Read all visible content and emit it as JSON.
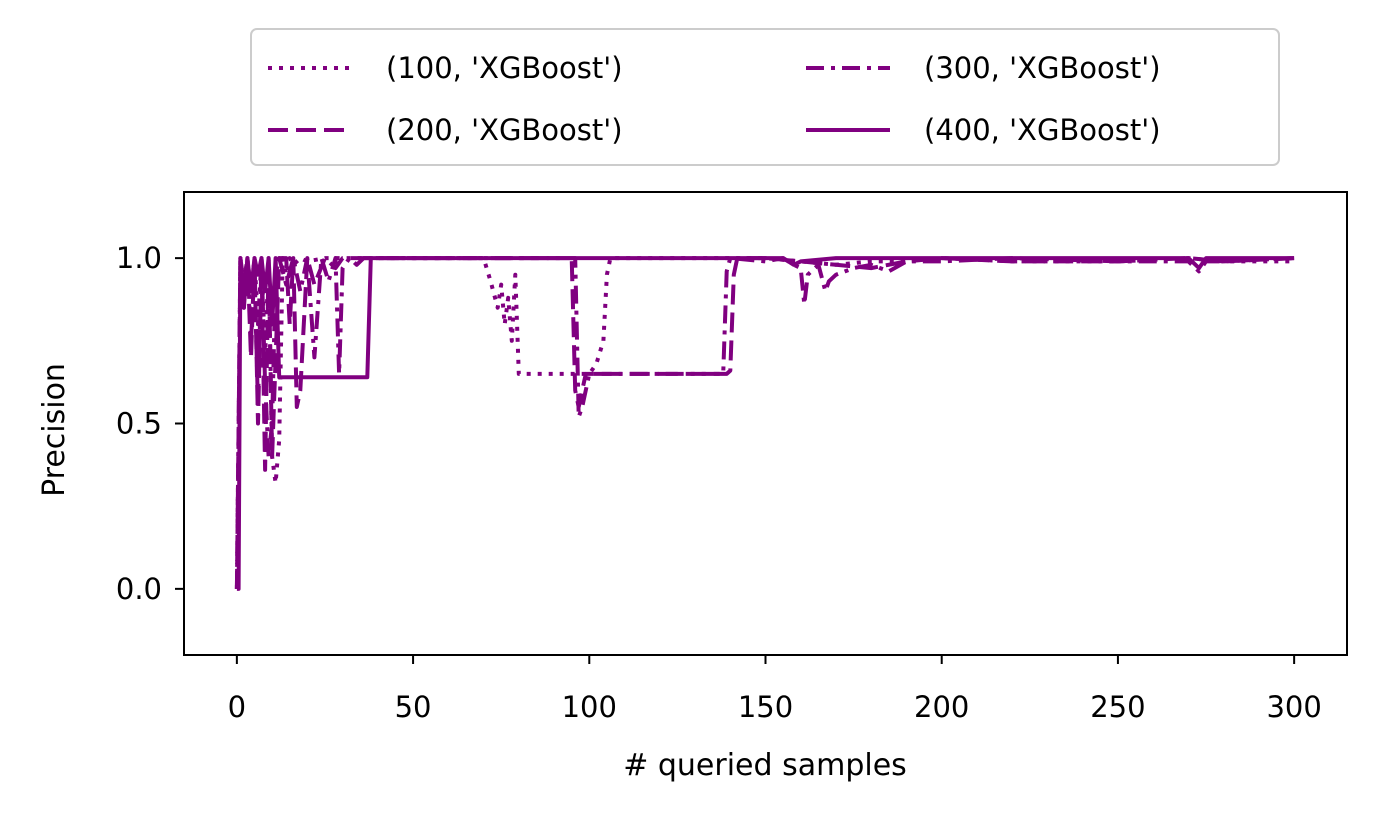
{
  "chart_data": {
    "type": "line",
    "xlabel": "# queried samples",
    "ylabel": "Precision",
    "xlim": [
      -15,
      315
    ],
    "ylim": [
      -0.2,
      1.2
    ],
    "xticks": [
      0,
      50,
      100,
      150,
      200,
      250,
      300
    ],
    "yticks": [
      0.0,
      0.5,
      1.0
    ],
    "xtick_labels": [
      "0",
      "50",
      "100",
      "150",
      "200",
      "250",
      "300"
    ],
    "ytick_labels": [
      "0.0",
      "0.5",
      "1.0"
    ],
    "grid": false,
    "legend_position": "top-center",
    "color": "#800080",
    "series": [
      {
        "name": "(100, 'XGBoost')",
        "style": "dotted",
        "x": [
          0,
          1,
          2,
          3,
          4,
          5,
          6,
          7,
          8,
          9,
          10,
          11,
          12,
          13,
          14,
          15,
          16,
          18,
          20,
          25,
          30,
          35,
          40,
          50,
          60,
          70,
          72,
          74,
          75,
          76,
          77,
          78,
          79,
          80,
          85,
          90,
          95,
          100,
          102,
          104,
          105,
          106,
          110,
          120,
          130,
          140,
          150,
          160,
          170,
          180,
          190,
          200,
          220,
          250,
          270,
          280,
          300
        ],
        "y": [
          0.0,
          1.0,
          0.92,
          1.0,
          0.9,
          1.0,
          0.8,
          1.0,
          0.7,
          1.0,
          0.4,
          0.32,
          0.45,
          1.0,
          0.95,
          1.0,
          0.98,
          1.0,
          0.99,
          1.0,
          1.0,
          1.0,
          1.0,
          1.0,
          1.0,
          1.0,
          0.93,
          0.85,
          0.92,
          0.8,
          0.88,
          0.75,
          0.95,
          0.65,
          0.65,
          0.65,
          0.65,
          0.65,
          0.68,
          0.75,
          0.95,
          1.0,
          1.0,
          1.0,
          1.0,
          1.0,
          1.0,
          0.99,
          0.98,
          0.99,
          0.99,
          1.0,
          0.99,
          0.99,
          1.0,
          0.99,
          0.99
        ]
      },
      {
        "name": "(200, 'XGBoost')",
        "style": "dashed",
        "x": [
          0,
          1,
          2,
          3,
          4,
          5,
          6,
          7,
          8,
          9,
          10,
          12,
          14,
          15,
          16,
          17,
          18,
          20,
          22,
          25,
          28,
          30,
          35,
          40,
          50,
          60,
          70,
          80,
          90,
          95,
          96,
          97,
          98,
          99,
          100,
          105,
          110,
          120,
          130,
          139,
          140,
          141,
          142,
          150,
          160,
          170,
          180,
          190,
          200,
          220,
          250,
          270,
          280,
          300
        ],
        "y": [
          0.0,
          1.0,
          0.85,
          1.0,
          0.7,
          1.0,
          0.5,
          0.98,
          0.36,
          1.0,
          0.4,
          1.0,
          1.0,
          0.8,
          1.0,
          0.55,
          0.6,
          1.0,
          0.92,
          1.0,
          0.97,
          1.0,
          1.0,
          1.0,
          1.0,
          1.0,
          1.0,
          1.0,
          1.0,
          1.0,
          0.6,
          0.55,
          0.6,
          0.65,
          0.65,
          0.65,
          0.65,
          0.65,
          0.65,
          0.65,
          0.66,
          0.95,
          1.0,
          1.0,
          0.99,
          0.98,
          0.97,
          0.99,
          1.0,
          0.99,
          0.99,
          1.0,
          0.99,
          1.0
        ]
      },
      {
        "name": "(300, 'XGBoost')",
        "style": "dashdot",
        "x": [
          0,
          1,
          2,
          3,
          4,
          5,
          6,
          7,
          8,
          9,
          10,
          11,
          12,
          14,
          16,
          18,
          20,
          22,
          24,
          26,
          28,
          29,
          30,
          32,
          34,
          36,
          38,
          40,
          50,
          60,
          70,
          80,
          90,
          96,
          97,
          98,
          100,
          110,
          120,
          130,
          138,
          139,
          140,
          150,
          155,
          158,
          160,
          161,
          162,
          165,
          167,
          168,
          170,
          175,
          180,
          185,
          190,
          200,
          220,
          250,
          270,
          273,
          275,
          280,
          300
        ],
        "y": [
          0.0,
          1.0,
          0.92,
          1.0,
          0.75,
          0.97,
          0.55,
          1.0,
          0.62,
          0.4,
          0.5,
          0.95,
          1.0,
          0.92,
          1.0,
          0.9,
          1.0,
          0.7,
          1.0,
          0.93,
          1.0,
          0.65,
          0.97,
          1.0,
          0.98,
          1.0,
          1.0,
          1.0,
          1.0,
          1.0,
          1.0,
          1.0,
          1.0,
          1.0,
          0.52,
          0.55,
          0.65,
          0.65,
          0.65,
          0.65,
          0.65,
          0.96,
          1.0,
          0.99,
          1.0,
          0.98,
          0.97,
          0.86,
          0.95,
          0.98,
          0.9,
          0.93,
          0.95,
          0.97,
          0.98,
          0.96,
          0.99,
          0.99,
          1.0,
          0.99,
          0.99,
          0.96,
          0.99,
          0.99,
          1.0
        ]
      },
      {
        "name": "(400, 'XGBoost')",
        "style": "solid",
        "x": [
          0,
          0.5,
          1,
          2,
          3,
          4,
          5,
          6,
          7,
          8,
          9,
          10,
          11,
          12,
          37,
          38,
          40,
          50,
          60,
          70,
          80,
          90,
          100,
          110,
          120,
          130,
          140,
          150,
          155,
          158,
          160,
          170,
          180,
          190,
          200,
          220,
          250,
          270,
          273,
          275,
          280,
          300
        ],
        "y": [
          0.0,
          0.0,
          1.0,
          0.85,
          1.0,
          0.9,
          1.0,
          0.95,
          1.0,
          0.9,
          1.0,
          0.8,
          1.0,
          0.64,
          0.64,
          1.0,
          1.0,
          1.0,
          1.0,
          1.0,
          1.0,
          1.0,
          1.0,
          1.0,
          1.0,
          1.0,
          1.0,
          1.0,
          1.0,
          0.98,
          0.99,
          1.0,
          1.0,
          1.0,
          1.0,
          1.0,
          1.0,
          1.0,
          0.97,
          1.0,
          1.0,
          1.0
        ]
      }
    ]
  }
}
